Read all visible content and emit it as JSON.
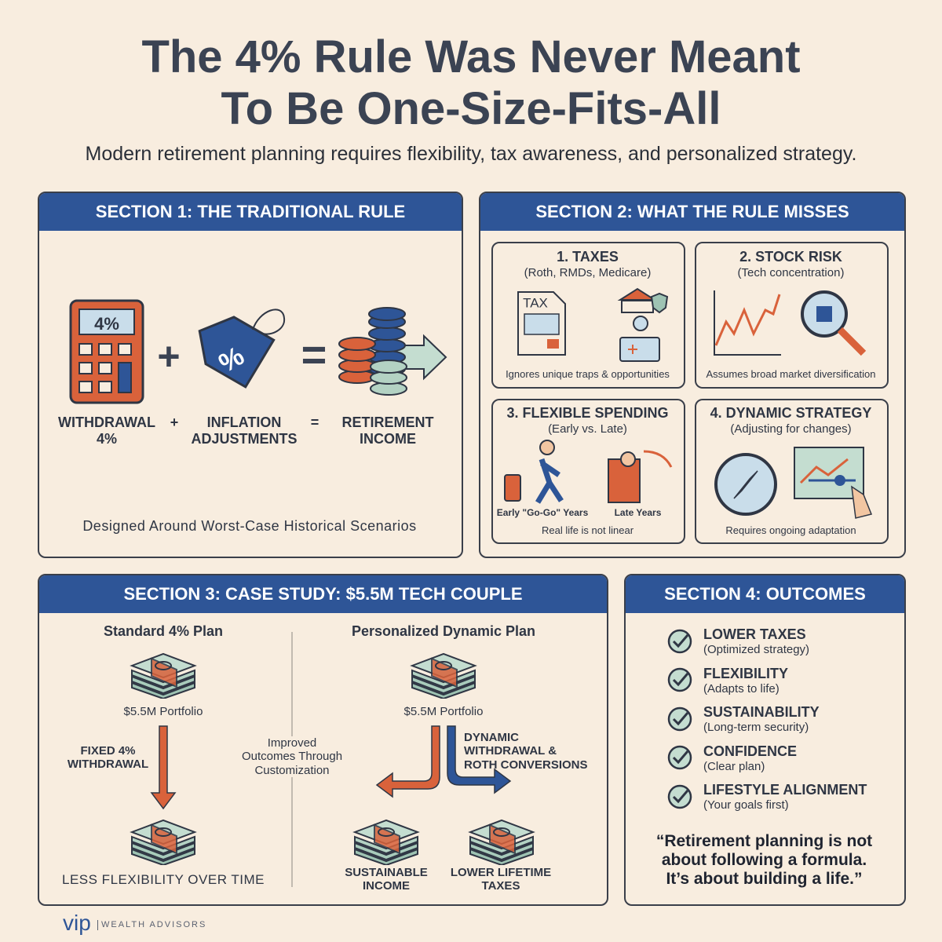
{
  "header": {
    "title_line1": "The 4% Rule Was Never Meant",
    "title_line2": "To Be One-Size-Fits-All",
    "subtitle": "Modern retirement planning requires flexibility, tax awareness, and personalized strategy."
  },
  "section1": {
    "heading": "SECTION 1: THE TRADITIONAL RULE",
    "calculator_display": "4%",
    "tag_symbol": "%",
    "formula": [
      "WITHDRAWAL\n4%",
      "+",
      "INFLATION\nADJUSTMENTS",
      "=",
      "RETIREMENT\nINCOME"
    ],
    "icon_plus": "+",
    "icon_equals": "=",
    "footer": "Designed Around Worst-Case Historical Scenarios"
  },
  "section2": {
    "heading": "SECTION 2: WHAT THE RULE MISSES",
    "cards": [
      {
        "title": "1. TAXES",
        "subtitle": "(Roth, RMDs, Medicare)",
        "icon_text": "TAX",
        "caption": "Ignores unique traps & opportunities"
      },
      {
        "title": "2. STOCK RISK",
        "subtitle": "(Tech concentration)",
        "caption": "Assumes broad market diversification"
      },
      {
        "title": "3. FLEXIBLE SPENDING",
        "subtitle": "(Early vs. Late)",
        "labels": [
          "Early \"Go-Go\" Years",
          "Late Years"
        ],
        "caption": "Real life is not linear"
      },
      {
        "title": "4. DYNAMIC STRATEGY",
        "subtitle": "(Adjusting for changes)",
        "caption": "Requires ongoing adaptation"
      }
    ]
  },
  "section3": {
    "heading": "SECTION 3: CASE STUDY: $5.5M TECH COUPLE",
    "standard": {
      "title": "Standard 4% Plan",
      "portfolio": "$5.5M Portfolio",
      "arrow_label": "FIXED 4%\nWITHDRAWAL",
      "footer": "LESS FLEXIBILITY OVER TIME"
    },
    "middle_note": "Improved\nOutcomes Through\nCustomization",
    "dynamic": {
      "title": "Personalized Dynamic Plan",
      "portfolio": "$5.5M Portfolio",
      "arrow_label": "DYNAMIC\nWITHDRAWAL &\nROTH CONVERSIONS",
      "outcomes": [
        "SUSTAINABLE\nINCOME",
        "LOWER LIFETIME\nTAXES"
      ]
    }
  },
  "section4": {
    "heading": "SECTION 4: OUTCOMES",
    "items": [
      {
        "title": "LOWER TAXES",
        "subtitle": "(Optimized strategy)"
      },
      {
        "title": "FLEXIBILITY",
        "subtitle": "(Adapts to life)"
      },
      {
        "title": "SUSTAINABILITY",
        "subtitle": "(Long-term security)"
      },
      {
        "title": "CONFIDENCE",
        "subtitle": "(Clear plan)"
      },
      {
        "title": "LIFESTYLE ALIGNMENT",
        "subtitle": "(Your goals first)"
      }
    ],
    "quote": "“Retirement planning is not\nabout following a formula.\nIt’s about building a life.”"
  },
  "footer": {
    "brand": "vip",
    "tagline": "WEALTH ADVISORS"
  }
}
